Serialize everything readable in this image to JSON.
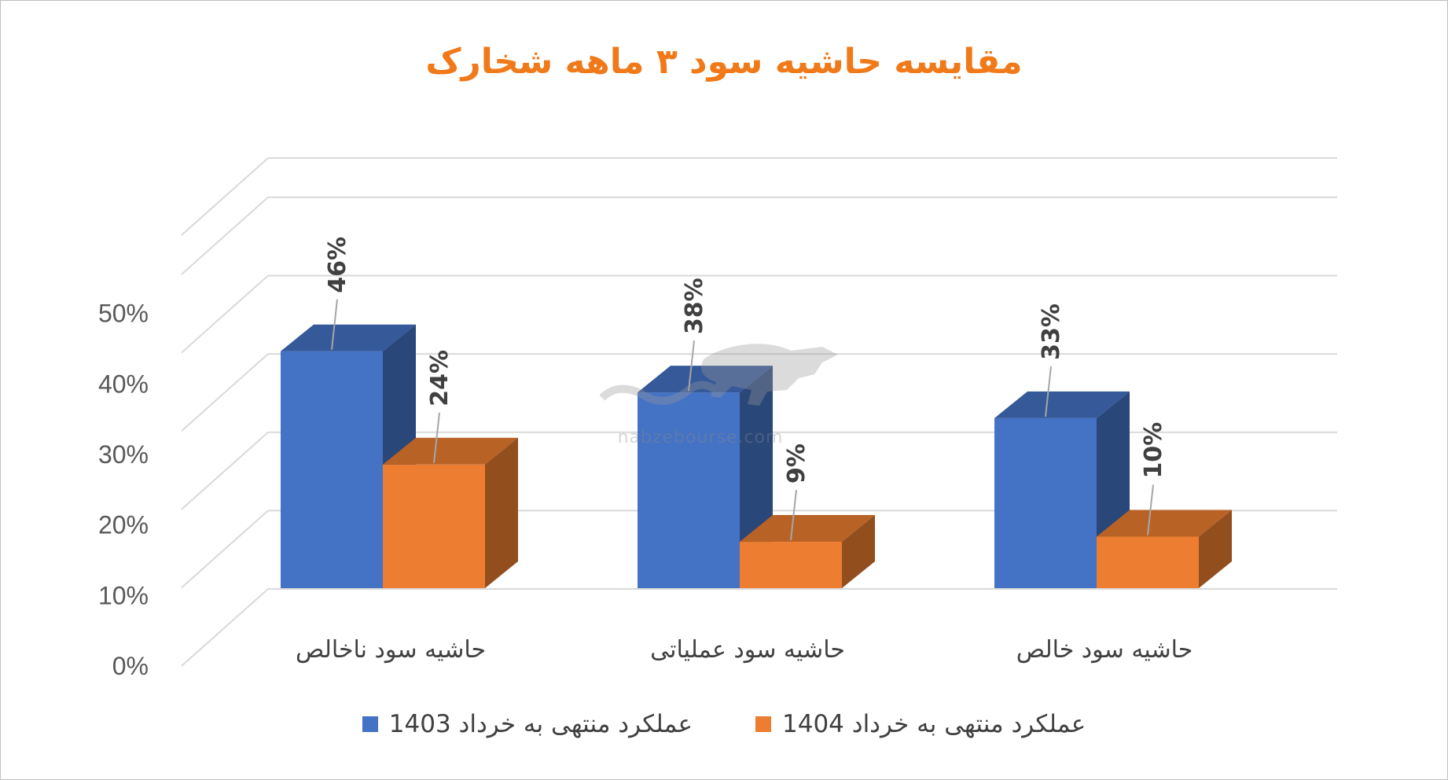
{
  "chart_data": {
    "type": "bar",
    "title": "مقایسه حاشیه سود ۳ ماهه شخارک",
    "categories": [
      "حاشیه سود ناخالص",
      "حاشیه سود عملیاتی",
      "حاشیه سود خالص"
    ],
    "series": [
      {
        "name": "عملکرد منتهی به خرداد 1403",
        "color": "#4472c4",
        "values": [
          46,
          38,
          33
        ],
        "labels": [
          "46%",
          "38%",
          "33%"
        ]
      },
      {
        "name": "عملکرد منتهی به خرداد 1404",
        "color": "#ed7d31",
        "values": [
          24,
          9,
          10
        ],
        "labels": [
          "24%",
          "9%",
          "10%"
        ]
      }
    ],
    "yticks": [
      "0%",
      "10%",
      "20%",
      "30%",
      "40%",
      "50%"
    ],
    "ylim": [
      0,
      50
    ],
    "grid": true,
    "legend": "bottom",
    "style": "3d-clustered-column"
  },
  "watermark": {
    "text": "nabzebourse.com"
  }
}
